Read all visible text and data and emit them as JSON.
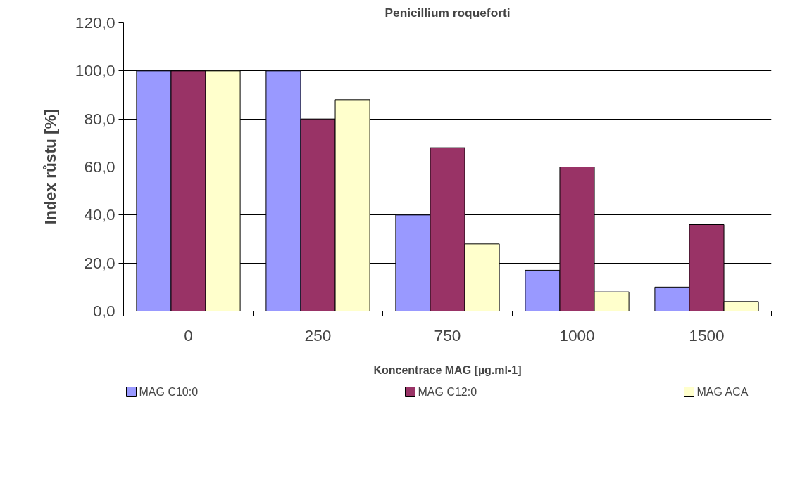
{
  "chart_data": {
    "type": "bar",
    "title": "Penicillium roqueforti",
    "xlabel": "Koncentrace MAG [µg.ml-1]",
    "ylabel": "Index růstu [%]",
    "categories": [
      "0",
      "250",
      "750",
      "1000",
      "1500"
    ],
    "series": [
      {
        "name": "MAG C10:0",
        "color": "#9999ff",
        "values": [
          100,
          100,
          40,
          17,
          10
        ]
      },
      {
        "name": "MAG C12:0",
        "color": "#993366",
        "values": [
          100,
          80,
          68,
          60,
          36
        ]
      },
      {
        "name": "MAG ACA",
        "color": "#ffffcc",
        "values": [
          100,
          88,
          28,
          8,
          4
        ]
      }
    ],
    "ylim": [
      0,
      120
    ],
    "yticks": [
      {
        "value": 0,
        "label": "0,0"
      },
      {
        "value": 20,
        "label": "20,0"
      },
      {
        "value": 40,
        "label": "40,0"
      },
      {
        "value": 60,
        "label": "60,0"
      },
      {
        "value": 80,
        "label": "80,0"
      },
      {
        "value": 100,
        "label": "100,0"
      },
      {
        "value": 120,
        "label": "120,0"
      }
    ],
    "grid": "y",
    "legend": "bottom"
  }
}
